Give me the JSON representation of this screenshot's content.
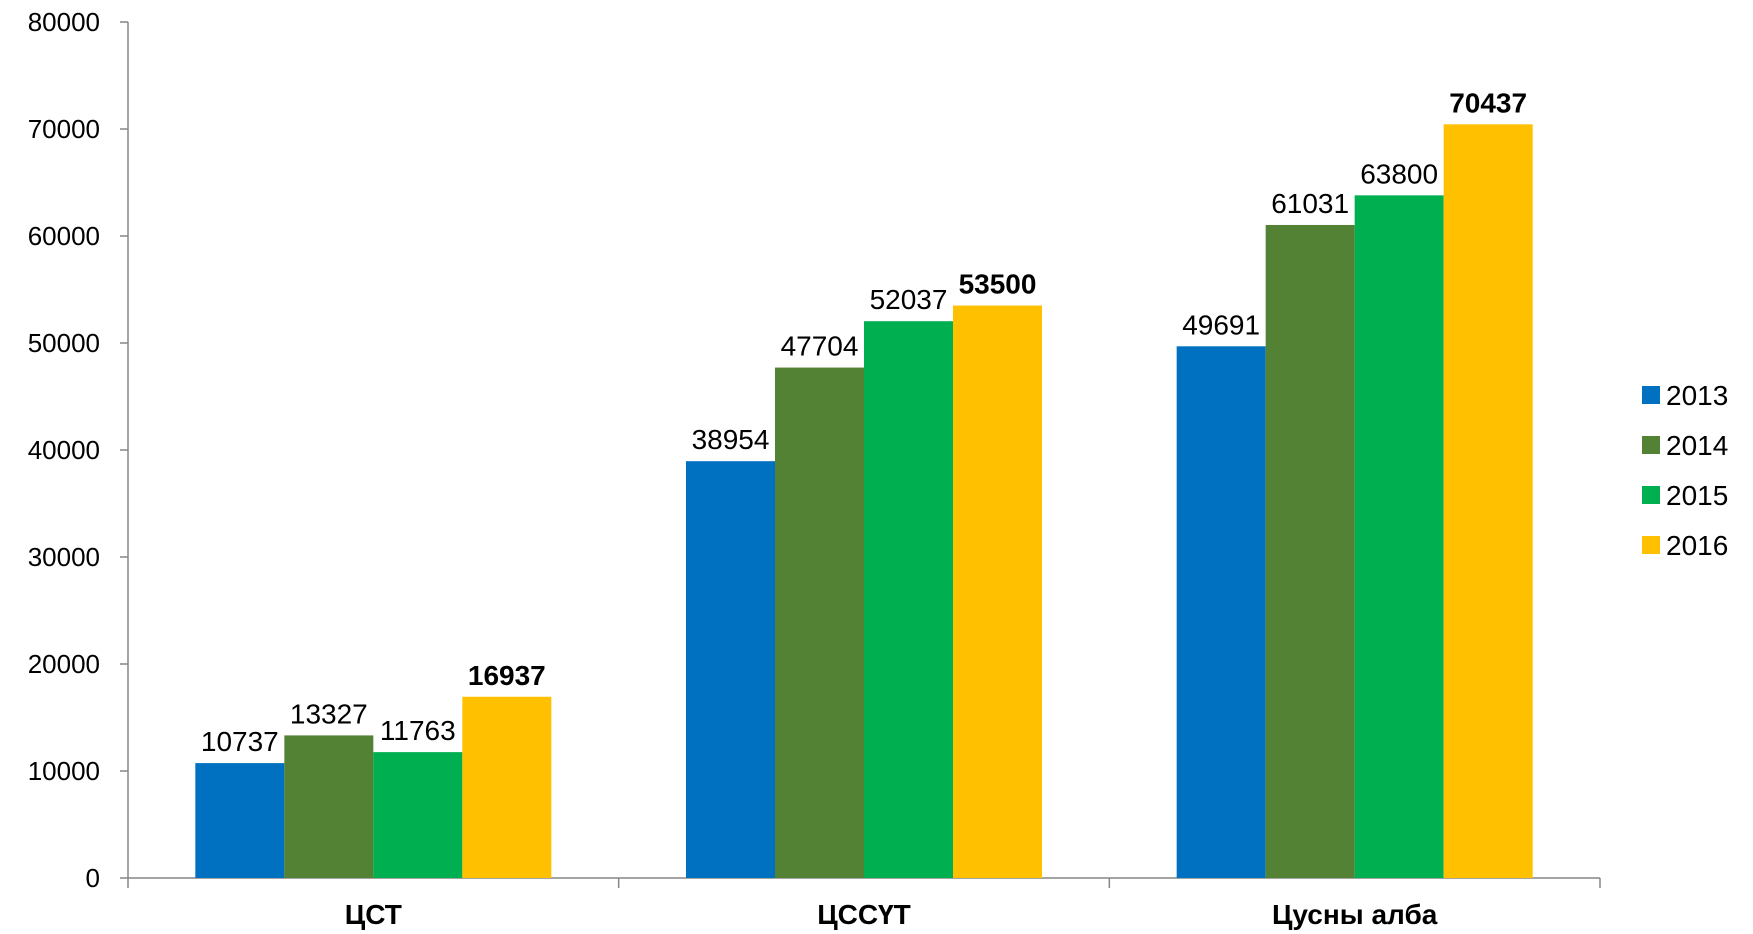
{
  "chart_data": {
    "type": "bar",
    "categories": [
      "ЦСТ",
      "ЦССҮТ",
      "Цусны алба"
    ],
    "series": [
      {
        "name": "2013",
        "values": [
          10737,
          38954,
          49691
        ]
      },
      {
        "name": "2014",
        "values": [
          13327,
          47704,
          61031
        ]
      },
      {
        "name": "2015",
        "values": [
          11763,
          52037,
          63800
        ]
      },
      {
        "name": "2016",
        "values": [
          16937,
          53500,
          70437
        ]
      }
    ],
    "colors": [
      "#0070C0",
      "#548235",
      "#00B050",
      "#FFC000"
    ],
    "bold_series": [
      "2016"
    ],
    "y_ticks": [
      "0",
      "10000",
      "20000",
      "30000",
      "40000",
      "50000",
      "60000",
      "70000",
      "80000"
    ],
    "ylim": [
      0,
      80000
    ],
    "grid": false,
    "legend_position": "right",
    "title": "",
    "xlabel": "",
    "ylabel": ""
  }
}
